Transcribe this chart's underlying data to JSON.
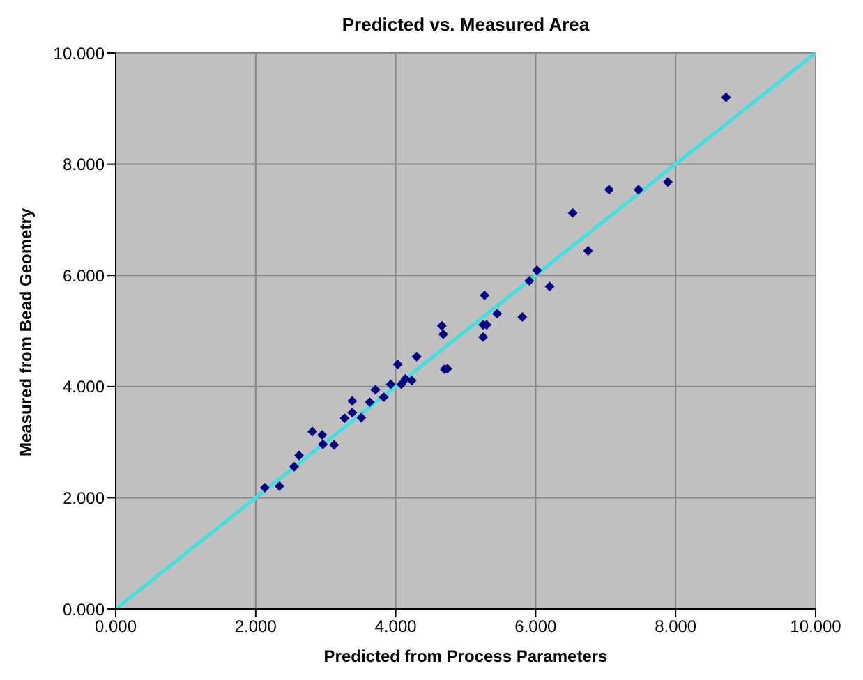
{
  "chart_data": {
    "type": "scatter",
    "title": "Predicted vs. Measured Area",
    "xlabel": "Predicted from Process Parameters",
    "ylabel": "Measured from Bead Geometry",
    "xlim": [
      0,
      10
    ],
    "ylim": [
      0,
      10
    ],
    "xticks": [
      {
        "value": 0,
        "label": "0.000"
      },
      {
        "value": 2,
        "label": "2.000"
      },
      {
        "value": 4,
        "label": "4.000"
      },
      {
        "value": 6,
        "label": "6.000"
      },
      {
        "value": 8,
        "label": "8.000"
      },
      {
        "value": 10,
        "label": "10.000"
      }
    ],
    "yticks": [
      {
        "value": 0,
        "label": "0.000"
      },
      {
        "value": 2,
        "label": "2.000"
      },
      {
        "value": 4,
        "label": "4.000"
      },
      {
        "value": 6,
        "label": "6.000"
      },
      {
        "value": 8,
        "label": "8.000"
      },
      {
        "value": 10,
        "label": "10.000"
      }
    ],
    "grid": true,
    "series": [
      {
        "marker": "diamond",
        "color": "#000080",
        "x": [
          2.13,
          2.34,
          2.55,
          2.62,
          2.81,
          2.95,
          2.96,
          3.12,
          3.27,
          3.38,
          3.38,
          3.51,
          3.63,
          3.71,
          3.83,
          3.93,
          4.03,
          4.08,
          4.14,
          4.23,
          4.3,
          4.66,
          4.68,
          4.7,
          4.74,
          5.27,
          5.25,
          5.3,
          5.25,
          5.45,
          5.81,
          5.91,
          6.02,
          6.2,
          6.53,
          6.75,
          7.05,
          7.47,
          7.89,
          8.72
        ],
        "values": [
          2.18,
          2.21,
          2.56,
          2.76,
          3.19,
          3.13,
          2.96,
          2.95,
          3.43,
          3.74,
          3.53,
          3.44,
          3.72,
          3.94,
          3.81,
          4.04,
          4.4,
          4.04,
          4.14,
          4.11,
          4.54,
          5.09,
          4.94,
          4.31,
          4.32,
          5.64,
          5.11,
          5.11,
          4.89,
          5.31,
          5.25,
          5.9,
          6.09,
          5.8,
          7.12,
          6.44,
          7.54,
          7.54,
          7.68,
          9.2
        ]
      },
      {
        "type": "line",
        "marker": "none",
        "color": "#40e0e0",
        "x": [
          0,
          10
        ],
        "values": [
          0,
          10
        ]
      }
    ]
  }
}
